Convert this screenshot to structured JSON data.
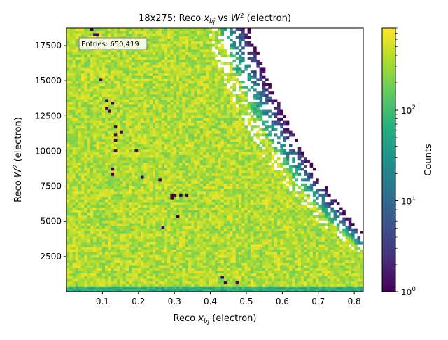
{
  "chart_data": {
    "type": "heatmap",
    "title_prefix": "18x275: Reco ",
    "title_x_sym": "x",
    "title_x_sub": "bj",
    "title_mid": " vs ",
    "title_w_sym": "W",
    "title_w_sup": "2",
    "title_suffix": " (electron)",
    "xlabel_prefix": "Reco ",
    "xlabel_sym": "x",
    "xlabel_sub": "bj",
    "xlabel_suffix": " (electron)",
    "ylabel_prefix": "Reco ",
    "ylabel_sym": "W",
    "ylabel_sup": "2",
    "ylabel_suffix": " (electron)",
    "xlim": [
      0.0,
      0.825
    ],
    "ylim": [
      0,
      18750
    ],
    "xticks": [
      0.1,
      0.2,
      0.3,
      0.4,
      0.5,
      0.6,
      0.7,
      0.8
    ],
    "xtick_labels": [
      "0.1",
      "0.2",
      "0.3",
      "0.4",
      "0.5",
      "0.6",
      "0.7",
      "0.8"
    ],
    "yticks": [
      2500,
      5000,
      7500,
      10000,
      12500,
      15000,
      17500
    ],
    "ytick_labels": [
      "2500",
      "5000",
      "7500",
      "10000",
      "12500",
      "15000",
      "17500"
    ],
    "colorbar": {
      "label": "Counts",
      "scale": "log",
      "range": [
        1,
        800
      ],
      "tick_base": "10",
      "tick_exponents": [
        "0",
        "1",
        "2"
      ],
      "tick_values": [
        1,
        10,
        100
      ],
      "colormap": "viridis"
    },
    "entries_label": "Entries: 650,419",
    "band": {
      "s_max": 19000,
      "s_min": 13800
    },
    "outliers": [
      {
        "x": 0.108,
        "y": 13600
      },
      {
        "x": 0.113,
        "y": 13000
      },
      {
        "x": 0.122,
        "y": 12800
      },
      {
        "x": 0.13,
        "y": 13400
      },
      {
        "x": 0.14,
        "y": 11800
      },
      {
        "x": 0.15,
        "y": 11300
      },
      {
        "x": 0.133,
        "y": 11200
      },
      {
        "x": 0.137,
        "y": 10700
      },
      {
        "x": 0.124,
        "y": 8800
      },
      {
        "x": 0.135,
        "y": 10100
      },
      {
        "x": 0.128,
        "y": 8400
      },
      {
        "x": 0.196,
        "y": 10100
      },
      {
        "x": 0.21,
        "y": 8200
      },
      {
        "x": 0.258,
        "y": 8000
      },
      {
        "x": 0.293,
        "y": 6900
      },
      {
        "x": 0.301,
        "y": 6900
      },
      {
        "x": 0.315,
        "y": 6900
      },
      {
        "x": 0.33,
        "y": 6900
      },
      {
        "x": 0.296,
        "y": 6700
      },
      {
        "x": 0.31,
        "y": 5400
      },
      {
        "x": 0.267,
        "y": 4600
      },
      {
        "x": 0.429,
        "y": 1050
      },
      {
        "x": 0.478,
        "y": 700
      },
      {
        "x": 0.443,
        "y": 700
      },
      {
        "x": 0.093,
        "y": 15000
      },
      {
        "x": 0.081,
        "y": 18300
      },
      {
        "x": 0.087,
        "y": 18200
      },
      {
        "x": 0.071,
        "y": 18700
      }
    ]
  }
}
